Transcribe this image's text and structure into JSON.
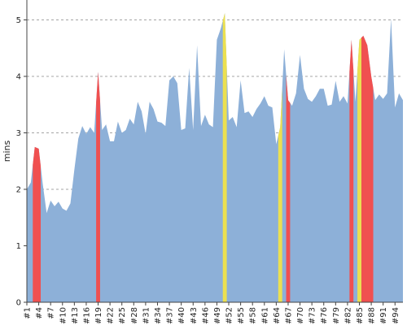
{
  "chart_data": {
    "type": "area",
    "title": "",
    "xlabel": "",
    "ylabel": "mins",
    "ylim": [
      0,
      5.2
    ],
    "yticks": [
      0,
      1,
      2,
      3,
      4,
      5
    ],
    "grid": true,
    "xtick_labels": [
      "#1",
      "#4",
      "#7",
      "#10",
      "#13",
      "#16",
      "#19",
      "#22",
      "#25",
      "#28",
      "#31",
      "#34",
      "#37",
      "#40",
      "#43",
      "#46",
      "#49",
      "#52",
      "#55",
      "#58",
      "#61",
      "#64",
      "#67",
      "#70",
      "#73",
      "#76",
      "#79",
      "#82",
      "#85",
      "#88",
      "#91",
      "#94"
    ],
    "x_first": 1,
    "x_last": 95,
    "values": [
      2.0,
      2.12,
      2.75,
      2.72,
      2.1,
      1.58,
      1.8,
      1.7,
      1.78,
      1.66,
      1.62,
      1.75,
      2.35,
      2.9,
      3.12,
      2.98,
      3.1,
      3.0,
      4.08,
      3.05,
      3.15,
      2.85,
      2.85,
      3.2,
      3.0,
      3.05,
      3.25,
      3.15,
      3.55,
      3.38,
      2.98,
      3.55,
      3.42,
      3.2,
      3.18,
      3.12,
      3.93,
      4.0,
      3.88,
      3.05,
      3.08,
      4.15,
      3.05,
      4.55,
      3.12,
      3.32,
      3.15,
      3.1,
      4.65,
      4.85,
      5.12,
      3.22,
      3.28,
      3.1,
      3.93,
      3.35,
      3.38,
      3.28,
      3.42,
      3.52,
      3.65,
      3.48,
      3.45,
      2.8,
      3.1,
      4.48,
      3.58,
      3.48,
      3.7,
      4.38,
      3.78,
      3.6,
      3.55,
      3.65,
      3.78,
      3.78,
      3.48,
      3.5,
      3.92,
      3.55,
      3.65,
      3.52,
      4.65,
      3.55,
      4.65,
      4.72,
      4.55,
      4.0,
      3.58,
      3.68,
      3.6,
      3.7,
      5.02,
      3.45,
      3.7,
      3.58
    ],
    "series": [
      {
        "color": "#8db0d8"
      }
    ],
    "highlights": [
      {
        "color": "#f05050",
        "spans": [
          [
            3,
            4
          ],
          [
            19,
            19
          ],
          [
            67,
            67
          ],
          [
            83,
            83
          ],
          [
            86,
            88
          ]
        ]
      },
      {
        "color": "#ece050",
        "spans": [
          [
            51,
            51
          ],
          [
            65,
            65
          ],
          [
            85,
            85
          ]
        ]
      }
    ]
  }
}
